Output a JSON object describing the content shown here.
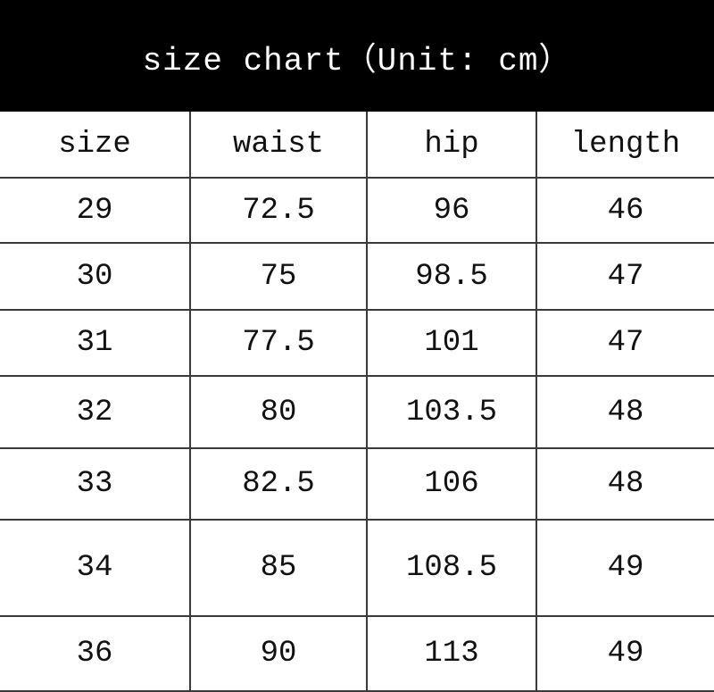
{
  "title": "size chart（Unit: cm）",
  "table": {
    "headers": [
      "size",
      "waist",
      "hip",
      "length"
    ],
    "rows": [
      [
        "29",
        "72.5",
        "96",
        "46"
      ],
      [
        "30",
        "75",
        "98.5",
        "47"
      ],
      [
        "31",
        "77.5",
        "101",
        "47"
      ],
      [
        "32",
        "80",
        "103.5",
        "48"
      ],
      [
        "33",
        "82.5",
        "106",
        "48"
      ],
      [
        "34",
        "85",
        "108.5",
        "49"
      ],
      [
        "36",
        "90",
        "113",
        "49"
      ]
    ]
  }
}
